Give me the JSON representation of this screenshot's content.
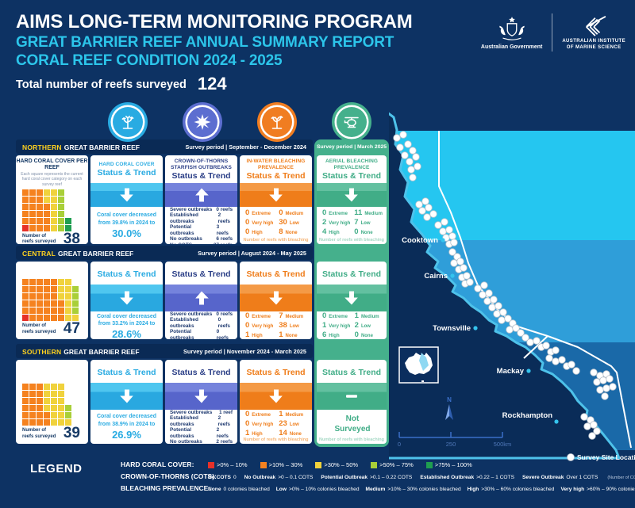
{
  "page": {
    "title_line1": "AIMS LONG-TERM MONITORING PROGRAM",
    "title_line2": "GREAT BARRIER REEF ANNUAL SUMMARY REPORT",
    "title_line3": "CORAL REEF CONDITION 2024 - 2025",
    "total_reefs_label": "Total number of reefs surveyed",
    "total_reefs_value": "124"
  },
  "logos": {
    "gov_label": "Australian Government",
    "aims_label_line1": "Australian Institute",
    "aims_label_line2": "of Marine Science"
  },
  "columns": {
    "waffle_title": "HARD CORAL COVER PER REEF",
    "waffle_note": "Each square represents the current hard coral cover category on each survey reef",
    "hcc_title": "HARD CORAL COVER",
    "cots_title": "CROWN-OF-THORNS STARFISH OUTBREAKS",
    "inwater_title": "IN-WATER BLEACHING PREVALENCE",
    "aerial_title": "AERIAL BLEACHING PREVALENCE",
    "status_trend": "Status & Trend",
    "reefs_surveyed_line1": "Number of",
    "reefs_surveyed_line2": "reefs surveyed",
    "bleaching_footer": "Number of reefs with bleaching"
  },
  "regions": [
    {
      "name": "NORTHERN",
      "name_rest": "GREAT BARRIER REEF",
      "survey_period": "Survey period | September - December 2024",
      "aerial_period": "Survey period | March 2025",
      "reefs_surveyed": "38",
      "coral_cover_counts": [
        1,
        21,
        8,
        6,
        2
      ],
      "hcc": {
        "trend": "down",
        "line1": "Coral cover decreased",
        "line2": "from 39.8% in 2024 to",
        "value": "30.0%"
      },
      "cots": {
        "trend": "up",
        "rows": [
          [
            "Severe outbreaks",
            "0 reefs"
          ],
          [
            "Established outbreaks",
            "2 reefs"
          ],
          [
            "Potential outbreaks",
            "3 reefs"
          ],
          [
            "No outbreaks",
            "6 reefs"
          ],
          [
            "No COTS",
            "27 reefs"
          ]
        ]
      },
      "inwater": {
        "trend": "down",
        "cells": [
          [
            "0",
            "Extreme"
          ],
          [
            "0",
            "Medium"
          ],
          [
            "0",
            "Very high"
          ],
          [
            "30",
            "Low"
          ],
          [
            "0",
            "High"
          ],
          [
            "8",
            "None"
          ]
        ]
      },
      "aerial": {
        "trend": "down",
        "cells": [
          [
            "0",
            "Extreme"
          ],
          [
            "11",
            "Medium"
          ],
          [
            "2",
            "Very high"
          ],
          [
            "7",
            "Low"
          ],
          [
            "4",
            "High"
          ],
          [
            "0",
            "None"
          ]
        ]
      }
    },
    {
      "name": "CENTRAL",
      "name_rest": "GREAT BARRIER REEF",
      "survey_period": "Survey period | August 2024 - May 2025",
      "aerial_period": "",
      "reefs_surveyed": "47",
      "coral_cover_counts": [
        1,
        32,
        10,
        4,
        0
      ],
      "hcc": {
        "trend": "down",
        "line1": "Coral cover decreased",
        "line2": "from 33.2% in 2024 to",
        "value": "28.6%"
      },
      "cots": {
        "trend": "up",
        "rows": [
          [
            "Severe outbreaks",
            "0 reefs"
          ],
          [
            "Established outbreaks",
            "0 reefs"
          ],
          [
            "Potential outbreaks",
            "0 reefs"
          ],
          [
            "No outbreaks",
            "8 reefs"
          ],
          [
            "No COTS",
            "39 reefs"
          ]
        ]
      },
      "inwater": {
        "trend": "down",
        "cells": [
          [
            "0",
            "Extreme"
          ],
          [
            "7",
            "Medium"
          ],
          [
            "0",
            "Very high"
          ],
          [
            "38",
            "Low"
          ],
          [
            "1",
            "High"
          ],
          [
            "1",
            "None"
          ]
        ]
      },
      "aerial": {
        "trend": "down",
        "cells": [
          [
            "0",
            "Extreme"
          ],
          [
            "1",
            "Medium"
          ],
          [
            "1",
            "Very high"
          ],
          [
            "2",
            "Low"
          ],
          [
            "6",
            "High"
          ],
          [
            "0",
            "None"
          ]
        ]
      }
    },
    {
      "name": "SOUTHERN",
      "name_rest": "GREAT BARRIER REEF",
      "survey_period": "Survey period | November 2024 - March 2025",
      "aerial_period": "",
      "reefs_surveyed": "39",
      "coral_cover_counts": [
        0,
        20,
        17,
        2,
        0
      ],
      "hcc": {
        "trend": "down",
        "line1": "Coral cover decreased",
        "line2": "from 38.9% in 2024 to",
        "value": "26.9%"
      },
      "cots": {
        "trend": "down",
        "rows": [
          [
            "Severe outbreaks",
            "1 reef"
          ],
          [
            "Established outbreaks",
            "2 reefs"
          ],
          [
            "Potential outbreaks",
            "2 reefs"
          ],
          [
            "No outbreaks",
            "2 reefs"
          ],
          [
            "No COTS",
            "32 reefs"
          ]
        ]
      },
      "inwater": {
        "trend": "down",
        "cells": [
          [
            "0",
            "Extreme"
          ],
          [
            "1",
            "Medium"
          ],
          [
            "0",
            "Very high"
          ],
          [
            "23",
            "Low"
          ],
          [
            "1",
            "High"
          ],
          [
            "14",
            "None"
          ]
        ]
      },
      "aerial": {
        "trend": "dash",
        "not_surveyed": "Not Surveyed"
      }
    }
  ],
  "map": {
    "cities": [
      "Cooktown",
      "Cairns",
      "Townsville",
      "Mackay",
      "Rockhampton"
    ],
    "north_label": "N",
    "scale_labels": [
      "0",
      "250",
      "500km"
    ],
    "site_legend": "Survey Site Locations"
  },
  "legend": {
    "title": "LEGEND",
    "hcc_label": "HARD CORAL COVER:",
    "hcc_items": [
      {
        "color": "#e63129",
        "text": ">0% – 10%"
      },
      {
        "color": "#f5821f",
        "text": ">10% – 30%"
      },
      {
        "color": "#f0d23c",
        "text": ">30% – 50%"
      },
      {
        "color": "#a9cf38",
        "text": ">50% – 75%"
      },
      {
        "color": "#1f9e50",
        "text": ">75% – 100%"
      }
    ],
    "cots_label": "CROWN-OF-THORNS (COTS):",
    "cots_items": [
      {
        "term": "No COTS",
        "text": "0"
      },
      {
        "term": "No Outbreak",
        "text": ">0 – 0.1 COTS"
      },
      {
        "term": "Potential Outbreak",
        "text": ">0.1 – 0.22 COTS"
      },
      {
        "term": "Established Outbreak",
        "text": ">0.22 – 1 COTS"
      },
      {
        "term": "Severe Outbreak",
        "text": "Over 1 COTS"
      }
    ],
    "cots_note": "(Number of COTS divided by tow numbers)",
    "bleach_label": "BLEACHING PREVALENCE:",
    "bleach_items": [
      {
        "term": "None",
        "text": "0 colonies bleached"
      },
      {
        "term": "Low",
        "text": ">0% – 10% colonies bleached"
      },
      {
        "term": "Medium",
        "text": ">10% – 30% colonies bleached"
      },
      {
        "term": "High",
        "text": ">30% – 60% colonies bleached"
      },
      {
        "term": "Very high",
        "text": ">60% – 90% colonies bleached"
      },
      {
        "term": "Extremely high",
        "text": ">90% colonies bleached"
      }
    ]
  },
  "chart_data": [
    {
      "type": "bar",
      "subtype": "waffle",
      "region": "Northern Great Barrier Reef",
      "title": "Hard coral cover per reef",
      "categories": [
        ">0%–10%",
        ">10%–30%",
        ">30%–50%",
        ">50%–75%",
        ">75%–100%"
      ],
      "values": [
        1,
        21,
        8,
        6,
        2
      ],
      "total_reefs": 38
    },
    {
      "type": "bar",
      "subtype": "waffle",
      "region": "Central Great Barrier Reef",
      "title": "Hard coral cover per reef",
      "categories": [
        ">0%–10%",
        ">10%–30%",
        ">30%–50%",
        ">50%–75%",
        ">75%–100%"
      ],
      "values": [
        1,
        32,
        10,
        4,
        0
      ],
      "total_reefs": 47
    },
    {
      "type": "bar",
      "subtype": "waffle",
      "region": "Southern Great Barrier Reef",
      "title": "Hard coral cover per reef",
      "categories": [
        ">0%–10%",
        ">10%–30%",
        ">30%–50%",
        ">50%–75%",
        ">75%–100%"
      ],
      "values": [
        0,
        20,
        17,
        2,
        0
      ],
      "total_reefs": 39
    }
  ],
  "colors": {
    "background": "#0d3263",
    "section_bar": "#0a2a55",
    "accent_cyan": "#2cc5ea",
    "hard_coral_blue": "#29abe2",
    "cots_purple": "#5c6ed0",
    "bleaching_orange": "#f07d21",
    "aerial_green": "#45b08c",
    "region_name_yellow": "#ffd21f",
    "map_north_band": "#25c6f0",
    "map_central_band": "#2f9ed9",
    "map_south_band": "#1a69a8",
    "land_navy": "#0a2c58",
    "waffle_palette": [
      "#e63129",
      "#f5821f",
      "#f0d23c",
      "#a9cf38",
      "#1f9e50"
    ]
  }
}
